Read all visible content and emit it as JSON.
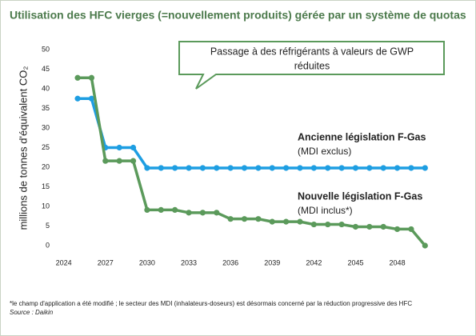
{
  "chart_data": {
    "type": "line",
    "title": "Utilisation des HFC vierges (=nouvellement produits) gérée par un système de quotas",
    "y_label": "millions de tonnes d'équivalent CO₂",
    "callout": [
      "Passage à des réfrigérants à valeurs de GWP",
      "réduites"
    ],
    "x": [
      2025,
      2026,
      2027,
      2028,
      2029,
      2030,
      2031,
      2032,
      2033,
      2034,
      2035,
      2036,
      2037,
      2038,
      2039,
      2040,
      2041,
      2042,
      2043,
      2044,
      2045,
      2046,
      2047,
      2048,
      2049,
      2050
    ],
    "series": [
      {
        "name": "Ancienne législation F-Gas",
        "note": "(MDI exclus)",
        "color": "#1e9ee2",
        "values": [
          37.5,
          37.5,
          25,
          25,
          25,
          19.8,
          19.8,
          19.8,
          19.8,
          19.8,
          19.8,
          19.8,
          19.8,
          19.8,
          19.8,
          19.8,
          19.8,
          19.8,
          19.8,
          19.8,
          19.8,
          19.8,
          19.8,
          19.8,
          19.8,
          19.8
        ]
      },
      {
        "name": "Nouvelle législation F-Gas",
        "note": "(MDI inclus*)",
        "color": "#5b9a5b",
        "values": [
          42.8,
          42.8,
          21.6,
          21.6,
          21.6,
          9.1,
          9.1,
          9.1,
          8.4,
          8.4,
          8.4,
          6.8,
          6.8,
          6.8,
          6.1,
          6.1,
          6.1,
          5.4,
          5.4,
          5.4,
          4.8,
          4.8,
          4.8,
          4.2,
          4.2,
          0
        ]
      }
    ],
    "xlim": [
      2023.5,
      2050.5
    ],
    "xticks": [
      2024,
      2027,
      2030,
      2033,
      2036,
      2039,
      2042,
      2045,
      2048
    ],
    "ylim": [
      0,
      50
    ],
    "yticks": [
      0,
      5,
      10,
      15,
      20,
      25,
      30,
      35,
      40,
      45,
      50
    ],
    "footnote": "*le champ d'application a été modifié ; le secteur des MDI (inhalateurs-doseurs) est désormais concerné par la réduction progressive des HFC",
    "source": "Source : Daikin"
  }
}
